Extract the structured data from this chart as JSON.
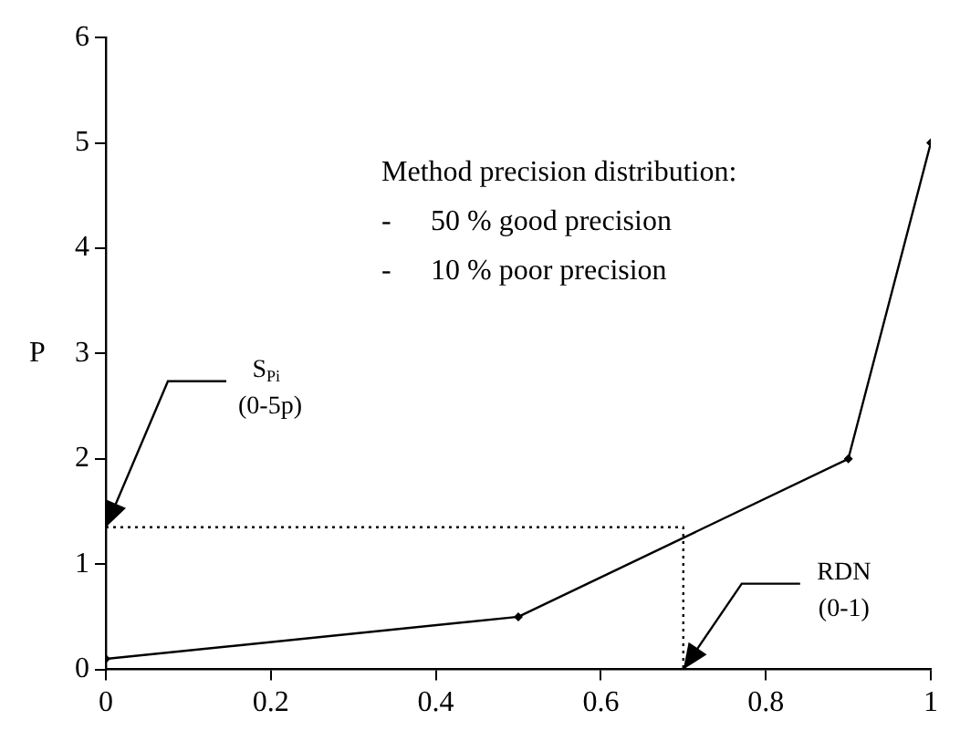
{
  "chart_data": {
    "type": "line",
    "ylabel": "P",
    "xlim": [
      0,
      1
    ],
    "xticks": [
      0,
      0.2,
      0.4,
      0.6,
      0.8,
      1
    ],
    "ylim": [
      0,
      6
    ],
    "yticks": [
      0,
      1,
      2,
      3,
      4,
      5,
      6
    ],
    "grid": false,
    "legend": false,
    "marker": "diamond",
    "line_style": "solid",
    "series": [
      {
        "color": "#000000",
        "x": [
          0,
          0.5,
          0.9,
          1
        ],
        "values": [
          0.1,
          0.5,
          2,
          5
        ]
      },
      {
        "color": "#000000",
        "x": [
          0,
          0.7,
          0.7
        ],
        "values": [
          1.35,
          1.35,
          0
        ],
        "marker": "none",
        "line_style": "dotted"
      }
    ],
    "annotations": [
      "Method precision distribution:",
      "-    50 % good precision",
      "-    10 % poor precision",
      {
        "text": "S$_{Pi}$\n(0-5p)",
        "x": 0,
        "y": 1.35
      },
      {
        "text": "RDN\n(0-1)",
        "x": 0.7,
        "y": 0
      }
    ]
  }
}
